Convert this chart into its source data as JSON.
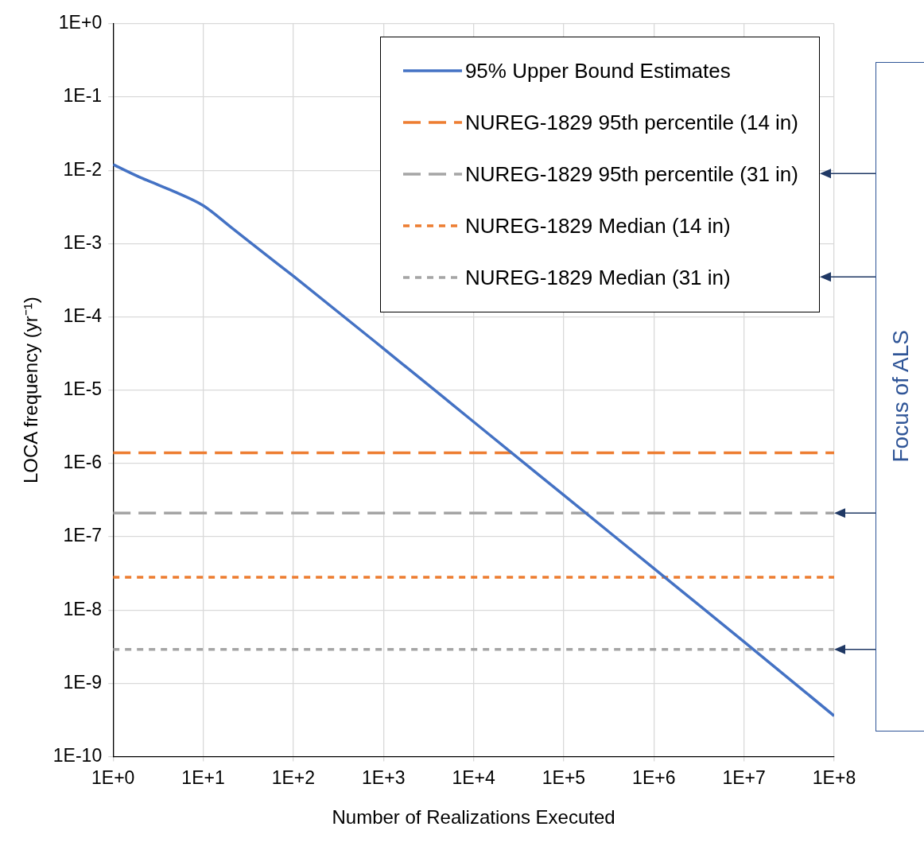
{
  "chart_data": {
    "type": "line",
    "xlabel": "Number of Realizations Executed",
    "ylabel": "LOCA frequency (yr⁻¹)",
    "log": "xy",
    "grid": true,
    "legend": "top right",
    "marker": "none",
    "xlim": [
      1,
      100000000
    ],
    "xticks": [
      {
        "value": 1,
        "label": "1E+0"
      },
      {
        "value": 10,
        "label": "1E+1"
      },
      {
        "value": 100,
        "label": "1E+2"
      },
      {
        "value": 1000,
        "label": "1E+3"
      },
      {
        "value": 10000,
        "label": "1E+4"
      },
      {
        "value": 100000,
        "label": "1E+5"
      },
      {
        "value": 1000000,
        "label": "1E+6"
      },
      {
        "value": 10000000,
        "label": "1E+7"
      },
      {
        "value": 100000000,
        "label": "1E+8"
      }
    ],
    "ylim": [
      1e-10,
      1
    ],
    "yticks": [
      {
        "value": 1,
        "label": "1E+0"
      },
      {
        "value": 0.1,
        "label": "1E-1"
      },
      {
        "value": 0.01,
        "label": "1E-2"
      },
      {
        "value": 0.001,
        "label": "1E-3"
      },
      {
        "value": 0.0001,
        "label": "1E-4"
      },
      {
        "value": 1e-05,
        "label": "1E-5"
      },
      {
        "value": 1e-06,
        "label": "1E-6"
      },
      {
        "value": 1e-07,
        "label": "1E-7"
      },
      {
        "value": 1e-08,
        "label": "1E-8"
      },
      {
        "value": 1e-09,
        "label": "1E-9"
      },
      {
        "value": 1e-10,
        "label": "1E-10"
      }
    ],
    "series": [
      {
        "name": "95% Upper Bound Estimates",
        "color": "#4472c4",
        "line_style": "solid",
        "x": [
          1,
          2,
          3,
          5,
          10,
          20,
          50,
          100,
          1000,
          10000,
          100000,
          1000000,
          10000000,
          100000000
        ],
        "values": [
          0.012,
          0.008,
          0.0065,
          0.005,
          0.0033,
          0.0017,
          0.0007,
          0.00036,
          3.7e-05,
          3.7e-06,
          3.7e-07,
          3.7e-08,
          3.7e-09,
          3.6e-10
        ]
      },
      {
        "name": "NUREG-1829 95th percentile (14 in)",
        "color": "#ed7d31",
        "line_style": "dashed",
        "x": [
          1,
          100000000
        ],
        "values": [
          1.4e-06,
          1.4e-06
        ]
      },
      {
        "name": "NUREG-1829 95th percentile (31 in)",
        "color": "#a5a5a5",
        "line_style": "dashed",
        "x": [
          1,
          100000000
        ],
        "values": [
          2.1e-07,
          2.1e-07
        ]
      },
      {
        "name": "NUREG-1829 Median (14 in)",
        "color": "#ed7d31",
        "line_style": "dotted",
        "x": [
          1,
          100000000
        ],
        "values": [
          2.8e-08,
          2.8e-08
        ]
      },
      {
        "name": "NUREG-1829 Median (31 in)",
        "color": "#a5a5a5",
        "line_style": "dotted",
        "x": [
          1,
          100000000
        ],
        "values": [
          2.9e-09,
          2.9e-09
        ]
      }
    ],
    "annotations": [
      "Focus of ALS"
    ]
  }
}
